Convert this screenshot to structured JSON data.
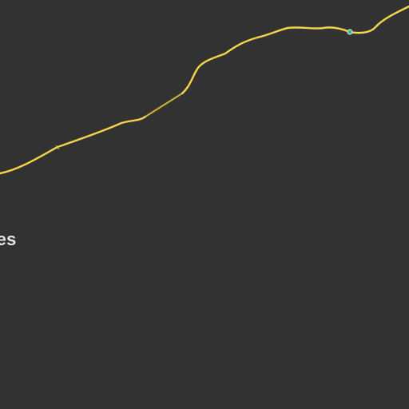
{
  "map": {
    "colors": {
      "background": "#323232",
      "road": "#f7d650",
      "road_casing": "#b89a2e",
      "label": "#e6e6e6",
      "marker_fill": "#2ec27e",
      "marker_ring": "#d9d9d9"
    },
    "labels": {
      "place": "ges"
    },
    "road": {
      "type": "highway",
      "color_name": "yellow"
    },
    "marker": {
      "icon": "location-dot-icon"
    }
  }
}
